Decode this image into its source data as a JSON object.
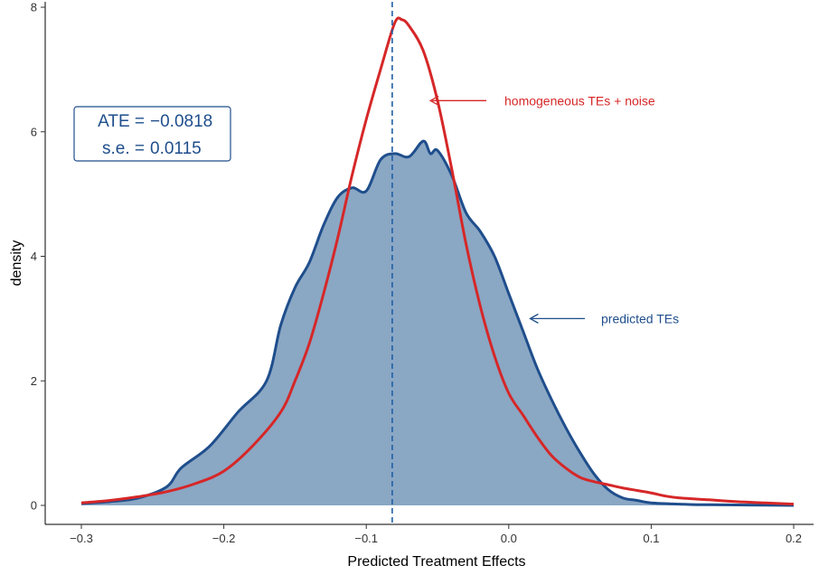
{
  "chart_data": {
    "type": "area",
    "xlabel": "Predicted Treatment Effects",
    "ylabel": "density",
    "xlim": [
      -0.32,
      0.22
    ],
    "ylim": [
      -0.25,
      8.15
    ],
    "x_ticks": [
      -0.3,
      -0.2,
      -0.1,
      0.0,
      0.1,
      0.2
    ],
    "x_tick_labels": [
      "−0.3",
      "−0.2",
      "−0.1",
      "0.0",
      "0.1",
      "0.2"
    ],
    "y_ticks": [
      0,
      2,
      4,
      6,
      8
    ],
    "y_tick_labels": [
      "0",
      "2",
      "4",
      "6",
      "8"
    ],
    "grid": false,
    "vline": {
      "x": -0.0818,
      "style": "dashed",
      "color": "#1F5FA6"
    },
    "series": [
      {
        "label": "predicted TEs",
        "style": "filled-area",
        "color": "#1F4E8C",
        "fill": "#8AA7C4",
        "points": [
          [
            -0.3,
            0.03
          ],
          [
            -0.28,
            0.06
          ],
          [
            -0.26,
            0.12
          ],
          [
            -0.24,
            0.3
          ],
          [
            -0.23,
            0.6
          ],
          [
            -0.21,
            0.95
          ],
          [
            -0.19,
            1.5
          ],
          [
            -0.17,
            2.0
          ],
          [
            -0.16,
            2.9
          ],
          [
            -0.15,
            3.5
          ],
          [
            -0.14,
            3.9
          ],
          [
            -0.13,
            4.5
          ],
          [
            -0.12,
            4.95
          ],
          [
            -0.11,
            5.1
          ],
          [
            -0.1,
            5.05
          ],
          [
            -0.09,
            5.55
          ],
          [
            -0.08,
            5.65
          ],
          [
            -0.07,
            5.6
          ],
          [
            -0.06,
            5.85
          ],
          [
            -0.055,
            5.65
          ],
          [
            -0.05,
            5.7
          ],
          [
            -0.04,
            5.3
          ],
          [
            -0.03,
            4.7
          ],
          [
            -0.02,
            4.4
          ],
          [
            -0.01,
            4.0
          ],
          [
            0.0,
            3.4
          ],
          [
            0.01,
            2.8
          ],
          [
            0.02,
            2.2
          ],
          [
            0.03,
            1.7
          ],
          [
            0.04,
            1.25
          ],
          [
            0.05,
            0.85
          ],
          [
            0.06,
            0.5
          ],
          [
            0.07,
            0.25
          ],
          [
            0.08,
            0.12
          ],
          [
            0.09,
            0.08
          ],
          [
            0.1,
            0.04
          ],
          [
            0.12,
            0.02
          ],
          [
            0.14,
            0.01
          ],
          [
            0.2,
            0.0
          ]
        ]
      },
      {
        "label": "homogeneous TEs + noise",
        "style": "line",
        "color": "#D62728",
        "points": [
          [
            -0.3,
            0.04
          ],
          [
            -0.28,
            0.08
          ],
          [
            -0.26,
            0.14
          ],
          [
            -0.24,
            0.22
          ],
          [
            -0.22,
            0.35
          ],
          [
            -0.2,
            0.55
          ],
          [
            -0.18,
            0.95
          ],
          [
            -0.16,
            1.5
          ],
          [
            -0.15,
            2.0
          ],
          [
            -0.14,
            2.6
          ],
          [
            -0.13,
            3.4
          ],
          [
            -0.12,
            4.3
          ],
          [
            -0.11,
            5.3
          ],
          [
            -0.1,
            6.2
          ],
          [
            -0.09,
            7.0
          ],
          [
            -0.08,
            7.75
          ],
          [
            -0.075,
            7.8
          ],
          [
            -0.07,
            7.7
          ],
          [
            -0.06,
            7.3
          ],
          [
            -0.05,
            6.5
          ],
          [
            -0.04,
            5.4
          ],
          [
            -0.03,
            4.2
          ],
          [
            -0.02,
            3.2
          ],
          [
            -0.01,
            2.4
          ],
          [
            0.0,
            1.8
          ],
          [
            0.01,
            1.45
          ],
          [
            0.02,
            1.1
          ],
          [
            0.03,
            0.8
          ],
          [
            0.04,
            0.6
          ],
          [
            0.05,
            0.45
          ],
          [
            0.06,
            0.38
          ],
          [
            0.07,
            0.33
          ],
          [
            0.08,
            0.28
          ],
          [
            0.09,
            0.24
          ],
          [
            0.1,
            0.2
          ],
          [
            0.11,
            0.15
          ],
          [
            0.12,
            0.12
          ],
          [
            0.14,
            0.09
          ],
          [
            0.16,
            0.06
          ],
          [
            0.18,
            0.04
          ],
          [
            0.2,
            0.02
          ]
        ]
      }
    ],
    "annotations": [
      {
        "text": "homogeneous TEs + noise",
        "color": "#D62728",
        "arrow_target": [
          -0.055,
          6.5
        ]
      },
      {
        "text": "predicted TEs",
        "color": "#1F4E8C",
        "arrow_target": [
          0.015,
          3.0
        ]
      }
    ],
    "ate_box": {
      "line1_label": "ATE =",
      "line1_value": "−0.0818",
      "line2_label": "s.e. =",
      "line2_value": "0.0115",
      "color": "#1F4E8C"
    }
  }
}
